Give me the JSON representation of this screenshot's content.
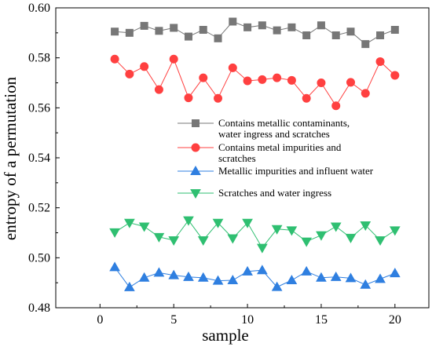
{
  "chart_data": {
    "type": "line",
    "xlabel": "sample",
    "ylabel": "entropy of a permutation",
    "xlim": [
      -3,
      22.3
    ],
    "ylim": [
      0.48,
      0.6
    ],
    "xticks": [
      0,
      5,
      10,
      15,
      20
    ],
    "yticks": [
      0.48,
      0.5,
      0.52,
      0.54,
      0.56,
      0.58,
      0.6
    ],
    "ytick_labels": [
      "0.48",
      "0.50",
      "0.52",
      "0.54",
      "0.56",
      "0.58",
      "0.60"
    ],
    "xtick_labels": [
      "0",
      "5",
      "10",
      "15",
      "20"
    ],
    "grid": false,
    "legend_position": "center-right",
    "x": [
      1,
      2,
      3,
      4,
      5,
      6,
      7,
      8,
      9,
      10,
      11,
      12,
      13,
      14,
      15,
      16,
      17,
      18,
      19,
      20
    ],
    "series": [
      {
        "name": "Contains metallic contaminants, water ingress and scratches",
        "name_lines": [
          "Contains metallic contaminants,",
          "water ingress and scratches"
        ],
        "color": "#777777",
        "marker": "square",
        "values": [
          0.5905,
          0.59,
          0.5928,
          0.5908,
          0.592,
          0.5885,
          0.5912,
          0.5878,
          0.5945,
          0.5922,
          0.593,
          0.591,
          0.5922,
          0.589,
          0.593,
          0.589,
          0.5905,
          0.5855,
          0.589,
          0.5912
        ]
      },
      {
        "name": "Contains metal impurities and scratches",
        "name_lines": [
          "Contains metal impurities and",
          "scratches"
        ],
        "color": "#ff4040",
        "marker": "circle",
        "values": [
          0.5795,
          0.5735,
          0.5765,
          0.5673,
          0.5795,
          0.564,
          0.572,
          0.5638,
          0.576,
          0.5708,
          0.5713,
          0.572,
          0.571,
          0.5638,
          0.57,
          0.5608,
          0.5702,
          0.5658,
          0.5785,
          0.573
        ]
      },
      {
        "name": "Metallic impurities and influent water",
        "name_lines": [
          "Metallic impurities and influent water"
        ],
        "color": "#2f7fe0",
        "marker": "triangle-up",
        "values": [
          0.4962,
          0.4882,
          0.492,
          0.494,
          0.493,
          0.4923,
          0.492,
          0.4908,
          0.491,
          0.4945,
          0.495,
          0.4883,
          0.491,
          0.4945,
          0.492,
          0.4923,
          0.4918,
          0.4892,
          0.4915,
          0.4938
        ]
      },
      {
        "name": "Scratches and water ingress",
        "name_lines": [
          "Scratches and water ingress"
        ],
        "color": "#2fbf71",
        "marker": "triangle-down",
        "values": [
          0.5102,
          0.514,
          0.5125,
          0.5083,
          0.507,
          0.515,
          0.507,
          0.514,
          0.5078,
          0.514,
          0.504,
          0.5115,
          0.511,
          0.5065,
          0.509,
          0.5125,
          0.508,
          0.513,
          0.507,
          0.511
        ]
      }
    ]
  }
}
